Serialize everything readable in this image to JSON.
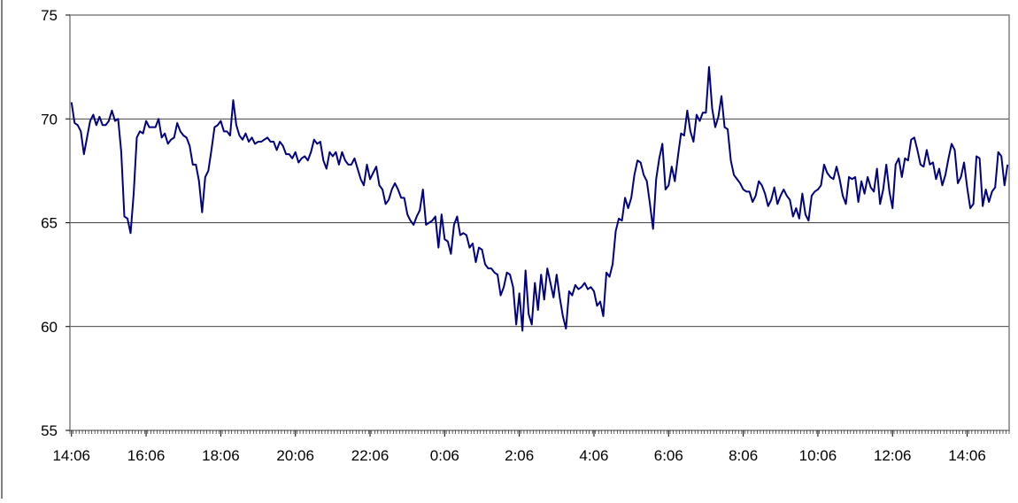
{
  "colors": {
    "line": "#000080",
    "plot_border": "#808080",
    "gridline": "#000000",
    "background": "#ffffff"
  },
  "chart_data": {
    "type": "line",
    "title": "",
    "xlabel": "",
    "ylabel": "",
    "ylim": [
      55,
      75
    ],
    "y_ticks": [
      55,
      60,
      65,
      70,
      75
    ],
    "y_gridlines": [
      60,
      65,
      70
    ],
    "x_tick_labels": [
      "14:06",
      "16:06",
      "18:06",
      "20:06",
      "22:06",
      "0:06",
      "2:06",
      "4:06",
      "6:06",
      "8:06",
      "10:06",
      "12:06",
      "14:06"
    ],
    "x_tick_step_hours": 2,
    "sample_interval_minutes": 5,
    "legend": "none",
    "series": [
      {
        "values": [
          70.8,
          69.8,
          69.7,
          69.4,
          68.3,
          69.1,
          69.9,
          70.2,
          69.7,
          70.1,
          69.7,
          69.7,
          69.9,
          70.4,
          69.9,
          70.0,
          68.4,
          65.3,
          65.2,
          64.5,
          66.4,
          69.1,
          69.4,
          69.3,
          69.9,
          69.6,
          69.6,
          69.6,
          70.0,
          69.1,
          69.3,
          68.8,
          69.0,
          69.1,
          69.8,
          69.4,
          69.2,
          69.1,
          68.7,
          67.8,
          67.8,
          67.0,
          65.5,
          67.2,
          67.5,
          68.5,
          69.6,
          69.7,
          69.9,
          69.4,
          69.4,
          69.2,
          70.9,
          69.7,
          69.2,
          69.0,
          69.3,
          68.9,
          69.1,
          68.8,
          68.9,
          68.9,
          69.0,
          69.1,
          68.9,
          68.9,
          68.5,
          68.9,
          68.7,
          68.3,
          68.3,
          68.1,
          68.4,
          67.9,
          68.1,
          68.2,
          68.0,
          68.4,
          69.0,
          68.8,
          68.9,
          68.0,
          67.6,
          68.4,
          68.2,
          68.4,
          67.8,
          68.4,
          68.0,
          67.8,
          67.8,
          68.1,
          67.6,
          67.1,
          66.8,
          67.8,
          67.1,
          67.4,
          67.7,
          66.8,
          66.6,
          65.9,
          66.1,
          66.6,
          66.9,
          66.6,
          66.2,
          66.2,
          65.4,
          65.1,
          64.9,
          65.3,
          65.6,
          66.6,
          64.9,
          65.0,
          65.1,
          65.3,
          63.8,
          65.4,
          64.2,
          64.1,
          63.5,
          64.9,
          65.3,
          64.4,
          64.5,
          64.4,
          63.8,
          64.0,
          63.1,
          63.8,
          63.7,
          63.0,
          62.8,
          62.8,
          62.6,
          62.5,
          61.5,
          61.9,
          62.6,
          62.5,
          61.9,
          60.1,
          61.6,
          59.8,
          62.7,
          60.6,
          60.1,
          62.1,
          60.8,
          62.5,
          61.3,
          62.8,
          62.1,
          61.4,
          62.5,
          61.4,
          60.5,
          59.9,
          61.7,
          61.5,
          62.0,
          61.8,
          61.9,
          62.1,
          61.8,
          61.9,
          61.7,
          61.0,
          61.2,
          60.5,
          62.6,
          62.4,
          63.0,
          64.6,
          65.2,
          65.1,
          66.2,
          65.7,
          66.2,
          67.3,
          68.0,
          67.9,
          67.3,
          67.0,
          65.9,
          64.7,
          67.1,
          68.1,
          68.8,
          66.6,
          66.8,
          67.7,
          67.0,
          68.2,
          69.3,
          69.2,
          70.4,
          69.4,
          68.9,
          70.2,
          69.9,
          70.3,
          70.3,
          72.5,
          70.5,
          69.6,
          70.1,
          71.1,
          69.6,
          69.5,
          68.0,
          67.3,
          67.1,
          66.9,
          66.6,
          66.5,
          66.5,
          66.0,
          66.3,
          67.0,
          66.8,
          66.4,
          65.8,
          66.1,
          66.7,
          65.9,
          66.3,
          66.6,
          66.3,
          66.1,
          65.3,
          65.7,
          65.2,
          66.4,
          65.4,
          65.1,
          66.3,
          66.5,
          66.6,
          66.8,
          67.8,
          67.4,
          67.2,
          67.1,
          67.7,
          67.1,
          66.3,
          65.9,
          67.2,
          67.1,
          67.2,
          66.0,
          67.0,
          66.4,
          67.2,
          66.7,
          66.5,
          67.6,
          65.9,
          66.6,
          67.8,
          66.5,
          65.7,
          67.8,
          68.1,
          67.2,
          68.1,
          68.0,
          69.0,
          69.1,
          68.5,
          67.8,
          67.7,
          68.5,
          67.8,
          67.9,
          67.1,
          67.6,
          66.8,
          67.3,
          68.1,
          68.8,
          68.5,
          66.9,
          67.2,
          67.9,
          66.7,
          65.7,
          65.9,
          68.2,
          68.1,
          65.8,
          66.6,
          66.0,
          66.5,
          66.7,
          68.4,
          68.2,
          66.8,
          67.8
        ]
      }
    ]
  }
}
